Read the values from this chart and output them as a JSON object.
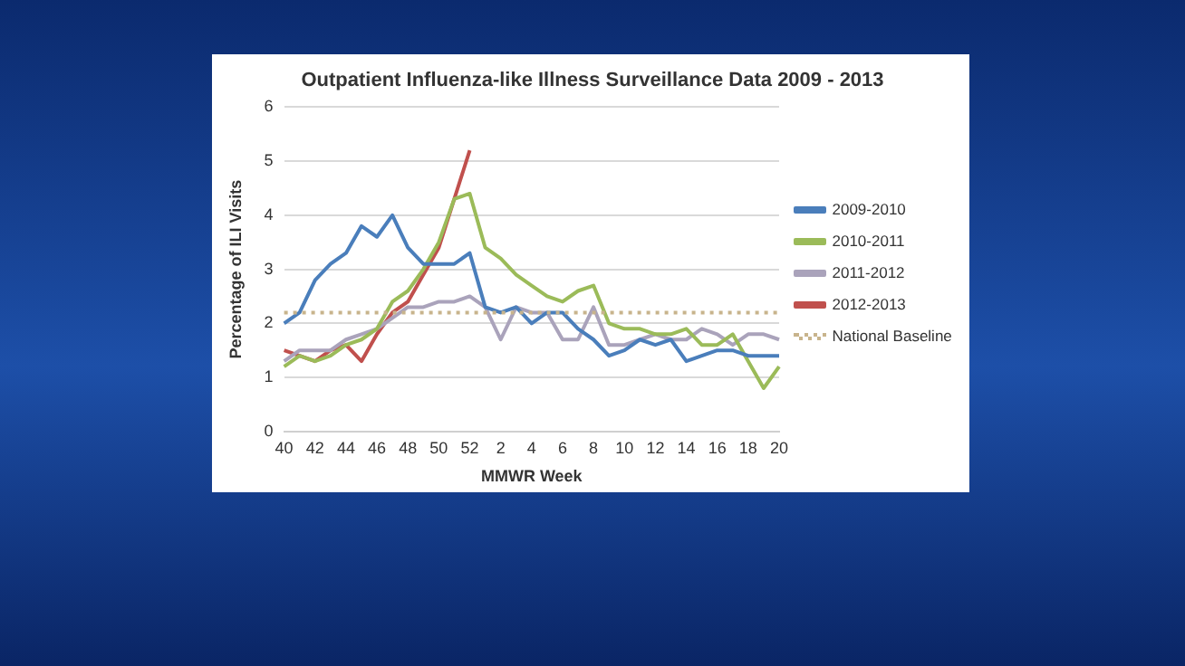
{
  "chart_data": {
    "type": "line",
    "title": "Outpatient Influenza-like Illness Surveillance Data 2009 - 2013",
    "xlabel": "MMWR Week",
    "ylabel": "Percentage of ILI Visits",
    "categories": [
      "40",
      null,
      "42",
      null,
      "44",
      null,
      "46",
      null,
      "48",
      null,
      "50",
      null,
      "52",
      null,
      "2",
      null,
      "4",
      null,
      "6",
      null,
      "8",
      null,
      "10",
      null,
      "12",
      null,
      "14",
      null,
      "16",
      null,
      "18",
      null,
      "20"
    ],
    "series": [
      {
        "name": "2009-2010",
        "color": "#4a7ebb",
        "values": [
          2.0,
          2.2,
          2.8,
          3.1,
          3.3,
          3.8,
          3.6,
          4.0,
          3.4,
          3.1,
          3.1,
          3.1,
          3.3,
          2.3,
          2.2,
          2.3,
          2.0,
          2.2,
          2.2,
          1.9,
          1.7,
          1.4,
          1.5,
          1.7,
          1.6,
          1.7,
          1.3,
          1.4,
          1.5,
          1.5,
          1.4,
          1.4,
          1.4
        ]
      },
      {
        "name": "2010-2011",
        "color": "#9bbb59",
        "values": [
          1.2,
          1.4,
          1.3,
          1.4,
          1.6,
          1.7,
          1.9,
          2.4,
          2.6,
          3.0,
          3.5,
          4.3,
          4.4,
          3.4,
          3.2,
          2.9,
          2.7,
          2.5,
          2.4,
          2.6,
          2.7,
          2.0,
          1.9,
          1.9,
          1.8,
          1.8,
          1.9,
          1.6,
          1.6,
          1.8,
          1.3,
          0.8,
          1.2
        ]
      },
      {
        "name": "2011-2012",
        "color": "#aaa3bb",
        "values": [
          1.3,
          1.5,
          1.5,
          1.5,
          1.7,
          1.8,
          1.9,
          2.1,
          2.3,
          2.3,
          2.4,
          2.4,
          2.5,
          2.3,
          1.7,
          2.3,
          2.2,
          2.2,
          1.7,
          1.7,
          2.3,
          1.6,
          1.6,
          1.7,
          1.8,
          1.7,
          1.7,
          1.9,
          1.8,
          1.6,
          1.8,
          1.8,
          1.7
        ]
      },
      {
        "name": "2012-2013",
        "color": "#c0504d",
        "values": [
          1.5,
          1.4,
          1.3,
          1.5,
          1.6,
          1.3,
          1.8,
          2.2,
          2.4,
          2.9,
          3.4,
          4.3,
          5.2,
          null,
          null,
          null,
          null,
          null,
          null,
          null,
          null,
          null,
          null,
          null,
          null,
          null,
          null,
          null,
          null,
          null,
          null,
          null,
          null
        ]
      }
    ],
    "ylim": [
      0,
      6
    ],
    "yticks": [
      0,
      1,
      2,
      3,
      4,
      5,
      6
    ],
    "grid": "y",
    "legend": "right",
    "marker": "none",
    "line_style": "solid",
    "ref_lines": [
      {
        "axis": "y",
        "value": 2.2,
        "label": "National Baseline",
        "color": "#c8b48c",
        "line_style": "dotted"
      }
    ]
  }
}
